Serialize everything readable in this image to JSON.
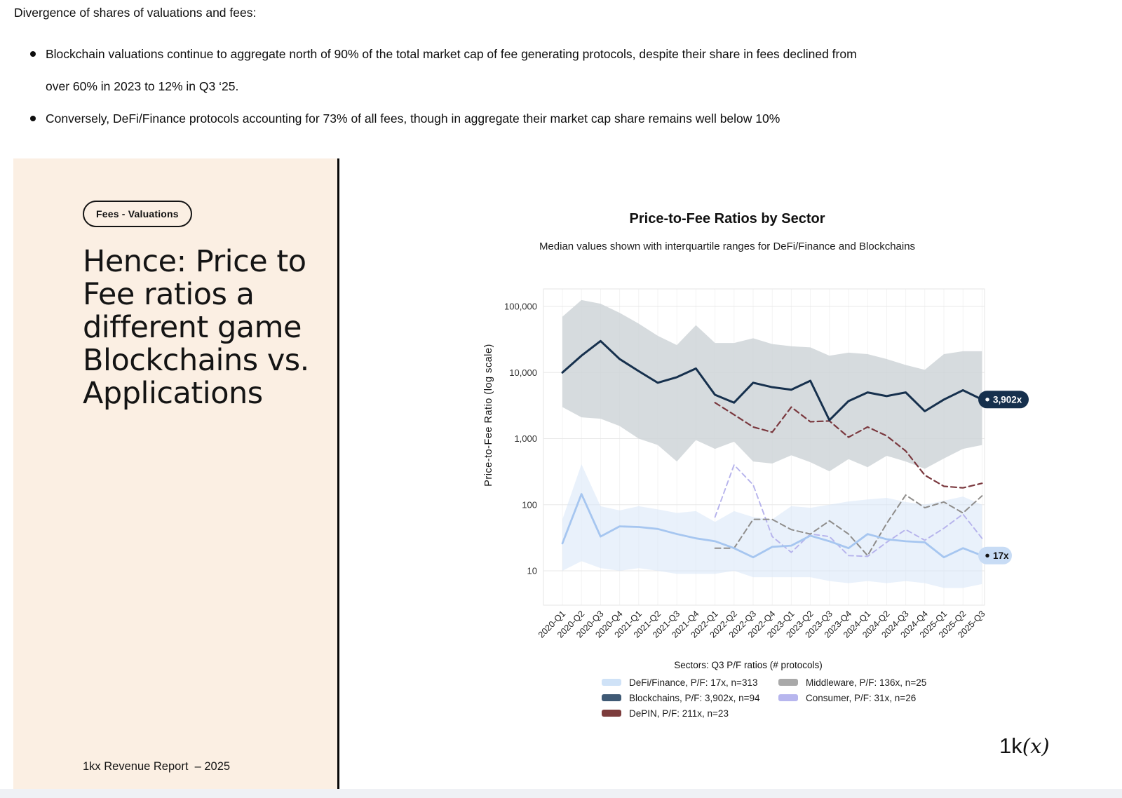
{
  "page": {
    "intro_heading": "Divergence of shares of valuations and fees:",
    "bullets": [
      "Blockchain valuations continue to aggregate north of 90% of the total market cap of fee generating protocols, despite their share in fees declined from\nover 60% in 2023 to 12% in Q3 ‘25.",
      "Conversely, DeFi/Finance protocols accounting for 73% of all fees, though in aggregate their market cap share remains well below 10%"
    ]
  },
  "panel": {
    "badge": "Fees - Valuations",
    "headline": "Hence: Price to\nFee ratios a\ndifferent game\nBlockchains vs.\nApplications",
    "footer": "1kx Revenue Report  – 2025"
  },
  "logo": {
    "regular": "1k",
    "italic": "(x)"
  },
  "chart_data": {
    "type": "line",
    "title": "Price-to-Fee Ratios by Sector",
    "subtitle": "Median values shown with interquartile ranges for DeFi/Finance and Blockchains",
    "ylabel": "Price-to-Fee Ratio (log scale)",
    "yscale": "log",
    "ylim": [
      3.2,
      185000
    ],
    "grid": true,
    "legend_position": "bottom",
    "yticks": [
      {
        "label": "100,000",
        "value": 100000
      },
      {
        "label": "10,000",
        "value": 10000
      },
      {
        "label": "1,000",
        "value": 1000
      },
      {
        "label": "100",
        "value": 100
      },
      {
        "label": "10",
        "value": 10
      }
    ],
    "categories": [
      "2020-Q1",
      "2020-Q2",
      "2020-Q3",
      "2020-Q4",
      "2021-Q1",
      "2021-Q2",
      "2021-Q3",
      "2021-Q4",
      "2022-Q1",
      "2022-Q2",
      "2022-Q3",
      "2022-Q4",
      "2023-Q1",
      "2023-Q2",
      "2023-Q3",
      "2023-Q4",
      "2024-Q1",
      "2024-Q2",
      "2024-Q3",
      "2024-Q4",
      "2025-Q1",
      "2025-Q2",
      "2025-Q3"
    ],
    "series": [
      {
        "name": "Consumer",
        "color": "#b6b3ec",
        "style": "dashed",
        "dash": "7 5",
        "width": 1.9,
        "start": 8,
        "values": [
          65,
          400,
          200,
          33,
          19,
          36,
          33,
          17,
          16.5,
          27,
          42,
          29,
          44,
          72,
          31
        ]
      },
      {
        "name": "Middleware",
        "color": "#8f8d8b",
        "style": "dashed",
        "dash": "8 5",
        "width": 2,
        "start": 8,
        "values": [
          22,
          22,
          60,
          60,
          42,
          36,
          57,
          36,
          17,
          52,
          140,
          90,
          110,
          75,
          136
        ]
      },
      {
        "name": "DePIN",
        "color": "#7a383e",
        "style": "dashed",
        "dash": "8 5",
        "width": 2.2,
        "start": 8,
        "values": [
          3500,
          2300,
          1500,
          1250,
          3000,
          1800,
          1850,
          1050,
          1500,
          1100,
          650,
          280,
          190,
          180,
          211
        ]
      },
      {
        "name": "DeFi/Finance",
        "color": "#a6c6f0",
        "style": "solid",
        "width": 2.8,
        "start": 0,
        "values": [
          26,
          145,
          33,
          47,
          46,
          43,
          36,
          31,
          28,
          22,
          16,
          23,
          24,
          34,
          28,
          22,
          36,
          30,
          28,
          27,
          16,
          22,
          17
        ]
      },
      {
        "name": "Blockchains",
        "color": "#16304d",
        "style": "solid",
        "width": 3,
        "start": 0,
        "values": [
          10000,
          18000,
          30000,
          16000,
          10500,
          7000,
          8500,
          11500,
          4600,
          3500,
          7000,
          6000,
          5500,
          7500,
          1900,
          3700,
          5000,
          4400,
          5000,
          2600,
          3900,
          5400,
          3902
        ]
      }
    ],
    "bands": [
      {
        "name": "Blockchains IQR",
        "color": "#ccd2d6",
        "opacity": 0.8,
        "start": 0,
        "upper": [
          70000,
          125000,
          110000,
          80000,
          55000,
          36000,
          26000,
          52000,
          28000,
          28000,
          33000,
          27000,
          25000,
          24000,
          18000,
          20000,
          19000,
          16000,
          13000,
          11000,
          19000,
          21000,
          21000
        ],
        "lower": [
          3000,
          2100,
          2000,
          1550,
          1000,
          800,
          450,
          950,
          700,
          900,
          450,
          420,
          560,
          440,
          320,
          490,
          370,
          550,
          450,
          350,
          500,
          700,
          800
        ]
      },
      {
        "name": "DeFi/Finance IQR",
        "color": "#d7e6f8",
        "opacity": 0.55,
        "start": 0,
        "upper": [
          60,
          410,
          95,
          82,
          95,
          85,
          75,
          80,
          55,
          80,
          65,
          60,
          95,
          90,
          100,
          112,
          120,
          127,
          110,
          100,
          115,
          133,
          100
        ],
        "lower": [
          10,
          14,
          11,
          10,
          11,
          10,
          9,
          9,
          9,
          10,
          8,
          8,
          8,
          8,
          7,
          6.5,
          7,
          6.5,
          7,
          6.5,
          5.5,
          5.5,
          6.3
        ]
      }
    ],
    "end_labels": [
      {
        "text": "3,902x",
        "value": 3902,
        "bg": "#16304d",
        "fg": "#ffffff",
        "dot": "#ffffff"
      },
      {
        "text": "17x",
        "value": 17,
        "bg": "#c8dcf5",
        "fg": "#111111",
        "dot": "#111111"
      }
    ],
    "legend": {
      "title": "Sectors: Q3 P/F ratios (# protocols)",
      "items": [
        {
          "label": "DeFi/Finance, P/F: 17x, n=313",
          "swatch": "#cfe2f7"
        },
        {
          "label": "Blockchains, P/F: 3,902x, n=94",
          "swatch": "#3f5a75"
        },
        {
          "label": "DePIN, P/F: 211x, n=23",
          "swatch": "#7c3c3c"
        },
        {
          "label": "Middleware, P/F: 136x, n=25",
          "swatch": "#a9a9a9"
        },
        {
          "label": "Consumer, P/F: 31x, n=26",
          "swatch": "#b7b6ee"
        }
      ]
    }
  }
}
